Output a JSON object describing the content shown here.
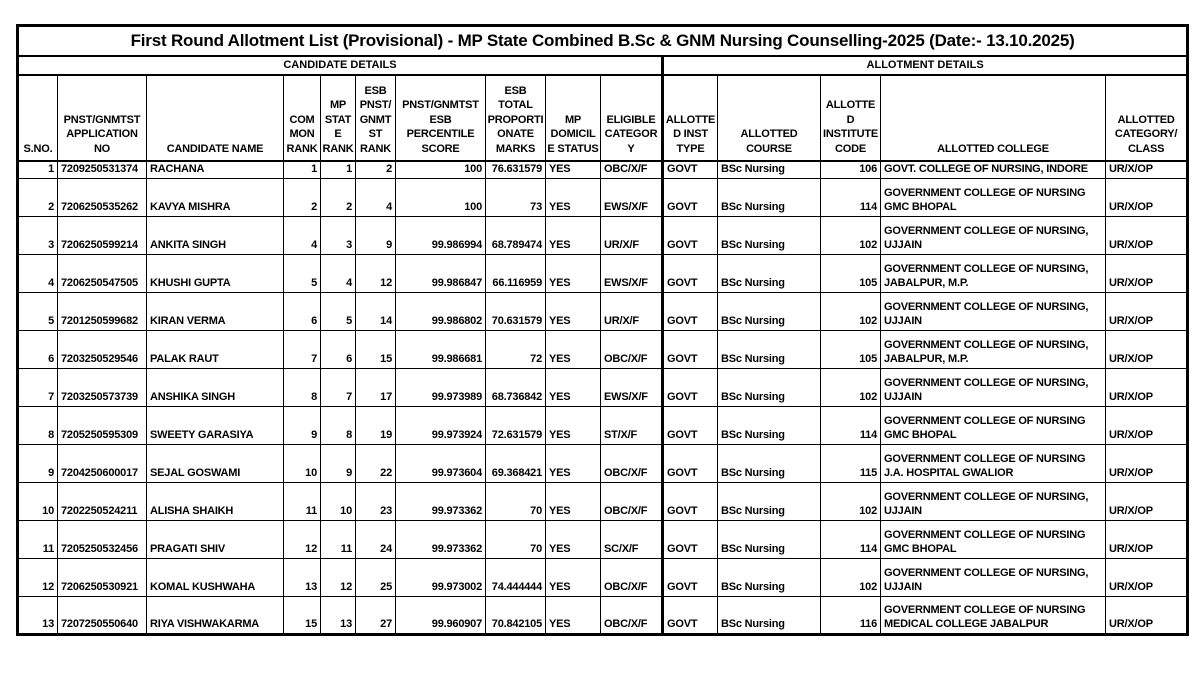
{
  "title": "First Round Allotment List (Provisional) - MP State Combined B.Sc & GNM Nursing Counselling-2025 (Date:- 13.10.2025)",
  "groups": {
    "candidate": "CANDIDATE DETAILS",
    "allotment": "ALLOTMENT DETAILS"
  },
  "columns": [
    {
      "key": "sno",
      "label": "S.NO."
    },
    {
      "key": "application-no",
      "label": "PNST/GNMTST APPLICATION NO"
    },
    {
      "key": "candidate-name",
      "label": "CANDIDATE NAME"
    },
    {
      "key": "common-rank",
      "label": "COMMON RANK"
    },
    {
      "key": "mp-state-rank",
      "label": "MP STATE RANK"
    },
    {
      "key": "esb-rank",
      "label": "ESB PNST/GNMTST RANK"
    },
    {
      "key": "percentile-score",
      "label": "PNST/GNMTST ESB PERCENTILE SCORE"
    },
    {
      "key": "proportionate-marks",
      "label": "ESB TOTAL PROPORTIONATE MARKS"
    },
    {
      "key": "domicile-status",
      "label": "MP DOMICILE STATUS"
    },
    {
      "key": "eligible-category",
      "label": "ELIGIBLE CATEGORY"
    },
    {
      "key": "allotted-inst-type",
      "label": "ALLOTTED INST TYPE"
    },
    {
      "key": "allotted-course",
      "label": "ALLOTTED COURSE"
    },
    {
      "key": "allotted-institute-code",
      "label": "ALLOTTED INSTITUTE CODE"
    },
    {
      "key": "allotted-college",
      "label": "ALLOTTED COLLEGE"
    },
    {
      "key": "allotted-category",
      "label": "ALLOTTED CATEGORY/ CLASS"
    }
  ],
  "rows": [
    [
      "1",
      "7209250531374",
      "RACHANA",
      "1",
      "1",
      "2",
      "100",
      "76.631579",
      "YES",
      "OBC/X/F",
      "GOVT",
      "BSc Nursing",
      "106",
      "GOVT. COLLEGE OF NURSING, INDORE",
      "UR/X/OP"
    ],
    [
      "2",
      "7206250535262",
      "KAVYA MISHRA",
      "2",
      "2",
      "4",
      "100",
      "73",
      "YES",
      "EWS/X/F",
      "GOVT",
      "BSc Nursing",
      "114",
      "GOVERNMENT COLLEGE OF NURSING GMC BHOPAL",
      "UR/X/OP"
    ],
    [
      "3",
      "7206250599214",
      "ANKITA SINGH",
      "4",
      "3",
      "9",
      "99.986994",
      "68.789474",
      "YES",
      "UR/X/F",
      "GOVT",
      "BSc Nursing",
      "102",
      "GOVERNMENT COLLEGE OF NURSING, UJJAIN",
      "UR/X/OP"
    ],
    [
      "4",
      "7206250547505",
      "KHUSHI GUPTA",
      "5",
      "4",
      "12",
      "99.986847",
      "66.116959",
      "YES",
      "EWS/X/F",
      "GOVT",
      "BSc Nursing",
      "105",
      "GOVERNMENT COLLEGE OF NURSING, JABALPUR, M.P.",
      "UR/X/OP"
    ],
    [
      "5",
      "7201250599682",
      "KIRAN VERMA",
      "6",
      "5",
      "14",
      "99.986802",
      "70.631579",
      "YES",
      "UR/X/F",
      "GOVT",
      "BSc Nursing",
      "102",
      "GOVERNMENT COLLEGE OF NURSING, UJJAIN",
      "UR/X/OP"
    ],
    [
      "6",
      "7203250529546",
      "PALAK RAUT",
      "7",
      "6",
      "15",
      "99.986681",
      "72",
      "YES",
      "OBC/X/F",
      "GOVT",
      "BSc Nursing",
      "105",
      "GOVERNMENT COLLEGE OF NURSING, JABALPUR, M.P.",
      "UR/X/OP"
    ],
    [
      "7",
      "7203250573739",
      "ANSHIKA SINGH",
      "8",
      "7",
      "17",
      "99.973989",
      "68.736842",
      "YES",
      "EWS/X/F",
      "GOVT",
      "BSc Nursing",
      "102",
      "GOVERNMENT COLLEGE OF NURSING, UJJAIN",
      "UR/X/OP"
    ],
    [
      "8",
      "7205250595309",
      "SWEETY GARASIYA",
      "9",
      "8",
      "19",
      "99.973924",
      "72.631579",
      "YES",
      "ST/X/F",
      "GOVT",
      "BSc Nursing",
      "114",
      "GOVERNMENT COLLEGE OF NURSING GMC BHOPAL",
      "UR/X/OP"
    ],
    [
      "9",
      "7204250600017",
      "SEJAL GOSWAMI",
      "10",
      "9",
      "22",
      "99.973604",
      "69.368421",
      "YES",
      "OBC/X/F",
      "GOVT",
      "BSc Nursing",
      "115",
      "GOVERNMENT COLLEGE OF NURSING J.A. HOSPITAL GWALIOR",
      "UR/X/OP"
    ],
    [
      "10",
      "7202250524211",
      "ALISHA SHAIKH",
      "11",
      "10",
      "23",
      "99.973362",
      "70",
      "YES",
      "OBC/X/F",
      "GOVT",
      "BSc Nursing",
      "102",
      "GOVERNMENT COLLEGE OF NURSING, UJJAIN",
      "UR/X/OP"
    ],
    [
      "11",
      "7205250532456",
      "PRAGATI SHIV",
      "12",
      "11",
      "24",
      "99.973362",
      "70",
      "YES",
      "SC/X/F",
      "GOVT",
      "BSc Nursing",
      "114",
      "GOVERNMENT COLLEGE OF NURSING GMC BHOPAL",
      "UR/X/OP"
    ],
    [
      "12",
      "7206250530921",
      "KOMAL KUSHWAHA",
      "13",
      "12",
      "25",
      "99.973002",
      "74.444444",
      "YES",
      "OBC/X/F",
      "GOVT",
      "BSc Nursing",
      "102",
      "GOVERNMENT COLLEGE OF NURSING, UJJAIN",
      "UR/X/OP"
    ],
    [
      "13",
      "7207250550640",
      "RIYA VISHWAKARMA",
      "15",
      "13",
      "27",
      "99.960907",
      "70.842105",
      "YES",
      "OBC/X/F",
      "GOVT",
      "BSc Nursing",
      "116",
      "GOVERNMENT COLLEGE OF NURSING MEDICAL COLLEGE JABALPUR",
      "UR/X/OP"
    ]
  ]
}
